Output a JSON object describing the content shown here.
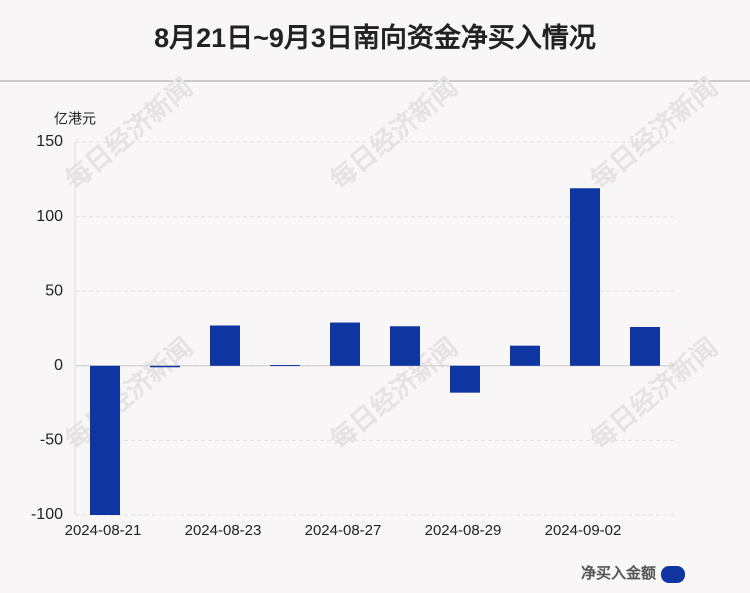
{
  "chart_data": {
    "type": "bar",
    "title": "8月21日~9月3日南向资金净买入情况",
    "y_unit": "亿港元",
    "watermark": "每日经济新闻",
    "categories": [
      "2024-08-21",
      null,
      "2024-08-23",
      null,
      "2024-08-27",
      null,
      "2024-08-29",
      null,
      "2024-09-02",
      null
    ],
    "series": [
      {
        "name": "净买入金额",
        "color": "#0e35a0",
        "values": [
          -100,
          -1,
          27,
          0.5,
          29,
          26.5,
          -18,
          13.5,
          119,
          26
        ]
      }
    ],
    "ylim": [
      -100,
      150
    ],
    "yticks": [
      -100,
      -50,
      0,
      50,
      100,
      150
    ],
    "grid": true
  }
}
